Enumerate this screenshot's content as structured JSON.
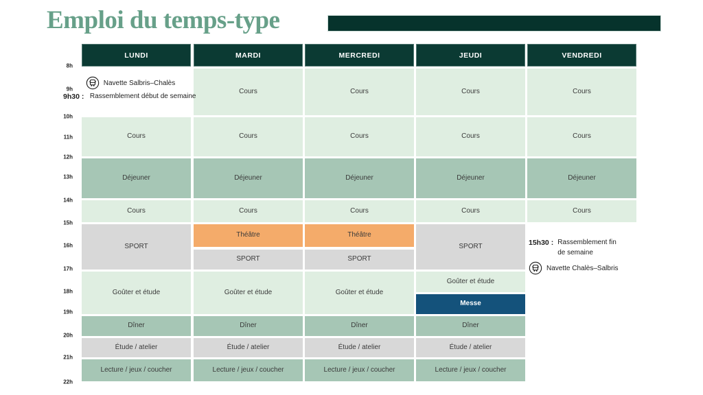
{
  "page": {
    "title": "Emploi du temps-type"
  },
  "colors": {
    "title": "#67a089",
    "header": "#0b3a33",
    "bar": "#06332c",
    "light": "#dfeee1",
    "medium": "#a6c6b5",
    "gray": "#d8d8d8",
    "orange": "#f4ab6a",
    "blue": "#14527b"
  },
  "schedule": {
    "days": [
      "LUNDI",
      "MARDI",
      "MERCREDI",
      "JEUDI",
      "VENDREDI"
    ],
    "time_labels": [
      "8h",
      "9h",
      "10h",
      "11h",
      "12h",
      "13h",
      "14h",
      "15h",
      "16h",
      "17h",
      "18h",
      "19h",
      "20h",
      "21h",
      "22h"
    ],
    "cells": [
      {
        "day": 0,
        "slot": "r2",
        "label": "Cours",
        "type": "light"
      },
      {
        "day": 0,
        "slot": "r3",
        "label": "Déjeuner",
        "type": "medium"
      },
      {
        "day": 0,
        "slot": "r4",
        "label": "Cours",
        "type": "light"
      },
      {
        "day": 0,
        "slot": "r5",
        "label": "SPORT",
        "type": "gray"
      },
      {
        "day": 0,
        "slot": "r6",
        "label": "Goûter et étude",
        "type": "light"
      },
      {
        "day": 0,
        "slot": "r7",
        "label": "Dîner",
        "type": "medium"
      },
      {
        "day": 0,
        "slot": "r8",
        "label": "Étude / atelier",
        "type": "gray"
      },
      {
        "day": 0,
        "slot": "r9",
        "label": "Lecture / jeux / coucher",
        "type": "medium"
      },
      {
        "day": 1,
        "slot": "r1",
        "label": "Cours",
        "type": "light"
      },
      {
        "day": 1,
        "slot": "r2",
        "label": "Cours",
        "type": "light"
      },
      {
        "day": 1,
        "slot": "r3",
        "label": "Déjeuner",
        "type": "medium"
      },
      {
        "day": 1,
        "slot": "r4",
        "label": "Cours",
        "type": "light"
      },
      {
        "day": 1,
        "slot": "r5a",
        "label": "Théâtre",
        "type": "orange"
      },
      {
        "day": 1,
        "slot": "r5b",
        "label": "SPORT",
        "type": "gray"
      },
      {
        "day": 1,
        "slot": "r6",
        "label": "Goûter et étude",
        "type": "light"
      },
      {
        "day": 1,
        "slot": "r7",
        "label": "Dîner",
        "type": "medium"
      },
      {
        "day": 1,
        "slot": "r8",
        "label": "Étude / atelier",
        "type": "gray"
      },
      {
        "day": 1,
        "slot": "r9",
        "label": "Lecture / jeux / coucher",
        "type": "medium"
      },
      {
        "day": 2,
        "slot": "r1",
        "label": "Cours",
        "type": "light"
      },
      {
        "day": 2,
        "slot": "r2",
        "label": "Cours",
        "type": "light"
      },
      {
        "day": 2,
        "slot": "r3",
        "label": "Déjeuner",
        "type": "medium"
      },
      {
        "day": 2,
        "slot": "r4",
        "label": "Cours",
        "type": "light"
      },
      {
        "day": 2,
        "slot": "r5a",
        "label": "Théâtre",
        "type": "orange"
      },
      {
        "day": 2,
        "slot": "r5b",
        "label": "SPORT",
        "type": "gray"
      },
      {
        "day": 2,
        "slot": "r6",
        "label": "Goûter et étude",
        "type": "light"
      },
      {
        "day": 2,
        "slot": "r7",
        "label": "Dîner",
        "type": "medium"
      },
      {
        "day": 2,
        "slot": "r8",
        "label": "Étude / atelier",
        "type": "gray"
      },
      {
        "day": 2,
        "slot": "r9",
        "label": "Lecture / jeux / coucher",
        "type": "medium"
      },
      {
        "day": 3,
        "slot": "r1",
        "label": "Cours",
        "type": "light"
      },
      {
        "day": 3,
        "slot": "r2",
        "label": "Cours",
        "type": "light"
      },
      {
        "day": 3,
        "slot": "r3",
        "label": "Déjeuner",
        "type": "medium"
      },
      {
        "day": 3,
        "slot": "r4",
        "label": "Cours",
        "type": "light"
      },
      {
        "day": 3,
        "slot": "r5",
        "label": "SPORT",
        "type": "gray"
      },
      {
        "day": 3,
        "slot": "r6a",
        "label": "Goûter et étude",
        "type": "light"
      },
      {
        "day": 3,
        "slot": "r6b",
        "label": "Messe",
        "type": "blue"
      },
      {
        "day": 3,
        "slot": "r7",
        "label": "Dîner",
        "type": "medium"
      },
      {
        "day": 3,
        "slot": "r8",
        "label": "Étude / atelier",
        "type": "gray"
      },
      {
        "day": 3,
        "slot": "r9",
        "label": "Lecture / jeux / coucher",
        "type": "medium"
      },
      {
        "day": 4,
        "slot": "r1",
        "label": "Cours",
        "type": "light"
      },
      {
        "day": 4,
        "slot": "r2",
        "label": "Cours",
        "type": "light"
      },
      {
        "day": 4,
        "slot": "r3",
        "label": "Déjeuner",
        "type": "medium"
      },
      {
        "day": 4,
        "slot": "r4",
        "label": "Cours",
        "type": "light"
      }
    ],
    "monday_note": {
      "navette": "Navette Salbris–Chalès",
      "time": "9h30 :",
      "text": "Rassemblement début de semaine"
    },
    "friday_note": {
      "time": "15h30 :",
      "text": "Rassemblement fin de semaine",
      "navette": "Navette Chalès–Salbris"
    }
  }
}
